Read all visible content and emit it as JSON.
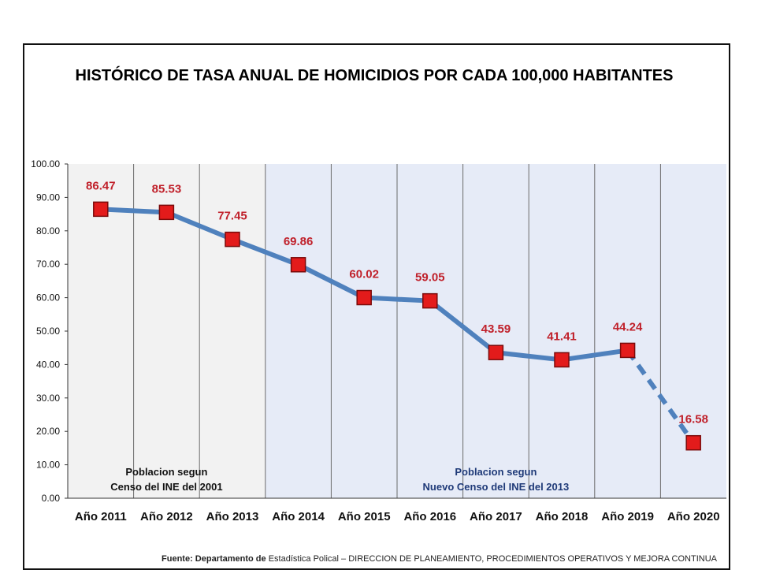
{
  "title": "HISTÓRICO DE TASA ANUAL DE HOMICIDIOS POR CADA 100,000 HABITANTES",
  "source": {
    "bold": "Fuente: Departamento de",
    "normal": " Estadística Polical – DIRECCION DE PLANEAMIENTO, PROCEDIMIENTOS OPERATIVOS Y MEJORA CONTINUA"
  },
  "chart_data": {
    "type": "line",
    "title": "HISTÓRICO DE TASA ANUAL DE HOMICIDIOS POR CADA 100,000 HABITANTES",
    "xlabel": "",
    "ylabel": "",
    "categories": [
      "Año 2011",
      "Año 2012",
      "Año 2013",
      "Año 2014",
      "Año 2015",
      "Año 2016",
      "Año 2017",
      "Año 2018",
      "Año 2019",
      "Año 2020"
    ],
    "values": [
      86.47,
      85.53,
      77.45,
      69.86,
      60.02,
      59.05,
      43.59,
      41.41,
      44.24,
      16.58
    ],
    "data_labels": [
      "86.47",
      "85.53",
      "77.45",
      "69.86",
      "60.02",
      "59.05",
      "43.59",
      "41.41",
      "44.24",
      "16.58"
    ],
    "ylim": [
      0,
      100
    ],
    "yticks": [
      "0.00",
      "10.00",
      "20.00",
      "30.00",
      "40.00",
      "50.00",
      "60.00",
      "70.00",
      "80.00",
      "90.00",
      "100.00"
    ],
    "grid": "vertical",
    "dashed_last_segment": true,
    "regions": [
      {
        "from": 0,
        "to": 3,
        "label_lines": [
          "Poblacion segun",
          "Censo del INE del 2001"
        ],
        "color": "#f2f2f2",
        "label_color": "#111111"
      },
      {
        "from": 3,
        "to": 10,
        "label_lines": [
          "Poblacion segun",
          "Nuevo Censo del INE del 2013"
        ],
        "color": "#e6ebf7",
        "label_color": "#1f3a78"
      }
    ],
    "colors": {
      "line": "#4f81bd",
      "marker": "#e31b1b",
      "label": "#c0202a",
      "grid": "#6b6b6b"
    }
  }
}
